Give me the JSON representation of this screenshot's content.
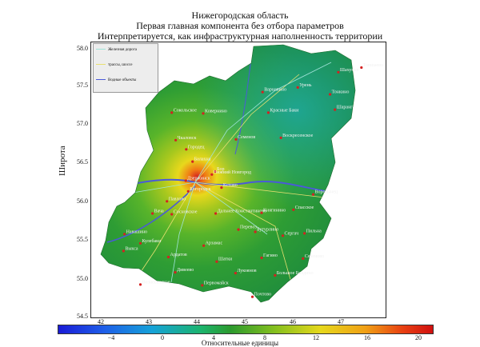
{
  "titles": {
    "line1": "Нижегородская область",
    "line2": "Первая главная компонента без отбора параметров",
    "line3": "Интерпретируется, как инфраструктурная наполненность территории"
  },
  "axes": {
    "ylabel": "Широта",
    "yticks": [
      "58.0",
      "57.5",
      "57.0",
      "56.5",
      "56.0",
      "55.5",
      "55.0",
      "54.5"
    ],
    "xticks": [
      "42",
      "43",
      "44",
      "45",
      "46",
      "47"
    ]
  },
  "legend": {
    "items": [
      {
        "label": "Железная дорога",
        "color": "#9fe3d8"
      },
      {
        "label": "трассы, шоссе",
        "color": "#e8e070"
      },
      {
        "label": "Водные объекты",
        "color": "#4a5ad8"
      }
    ]
  },
  "colorbar": {
    "label": "Относительные единицы",
    "ticks": [
      "−4",
      "0",
      "4",
      "8",
      "12",
      "16",
      "20"
    ]
  },
  "cities": [
    {
      "name": "Тоншаево",
      "lon": 47.1,
      "lat": 57.72
    },
    {
      "name": "Шахунья",
      "lon": 46.62,
      "lat": 57.66
    },
    {
      "name": "Урень",
      "lon": 45.78,
      "lat": 57.46
    },
    {
      "name": "Варнавино",
      "lon": 45.05,
      "lat": 57.4
    },
    {
      "name": "Тонкино",
      "lon": 46.45,
      "lat": 57.37
    },
    {
      "name": "Шарангa",
      "lon": 46.55,
      "lat": 57.17
    },
    {
      "name": "Красные Баки",
      "lon": 45.17,
      "lat": 57.13
    },
    {
      "name": "Сокольское",
      "lon": 43.17,
      "lat": 57.13
    },
    {
      "name": "Ковернино",
      "lon": 43.82,
      "lat": 57.12
    },
    {
      "name": "Воскресенское",
      "lon": 45.43,
      "lat": 56.8
    },
    {
      "name": "Семенов",
      "lon": 44.5,
      "lat": 56.78
    },
    {
      "name": "Бор",
      "lon": 44.07,
      "lat": 56.36
    },
    {
      "name": "Нижний Новгород",
      "lon": 44.0,
      "lat": 56.32
    },
    {
      "name": "Кстово",
      "lon": 44.2,
      "lat": 56.15
    },
    {
      "name": "Богородск",
      "lon": 43.51,
      "lat": 56.1
    },
    {
      "name": "Дзержинск",
      "lon": 43.46,
      "lat": 56.24
    },
    {
      "name": "Воротынец",
      "lon": 46.1,
      "lat": 56.06
    },
    {
      "name": "Павлово",
      "lon": 43.07,
      "lat": 55.97
    },
    {
      "name": "Спасское",
      "lon": 45.69,
      "lat": 55.86
    },
    {
      "name": "Вача",
      "lon": 42.77,
      "lat": 55.81
    },
    {
      "name": "Сосновское",
      "lon": 43.17,
      "lat": 55.8
    },
    {
      "name": "Дальнее Константиново",
      "lon": 44.08,
      "lat": 55.81
    },
    {
      "name": "Княгинино",
      "lon": 45.03,
      "lat": 55.82
    },
    {
      "name": "Сергач",
      "lon": 45.47,
      "lat": 55.52
    },
    {
      "name": "Перевоз",
      "lon": 44.55,
      "lat": 55.6
    },
    {
      "name": "Бутурлино",
      "lon": 44.9,
      "lat": 55.57
    },
    {
      "name": "Арзамас",
      "lon": 43.83,
      "lat": 55.39
    },
    {
      "name": "Гагино",
      "lon": 45.03,
      "lat": 55.23
    },
    {
      "name": "Сеченово",
      "lon": 45.89,
      "lat": 55.22
    },
    {
      "name": "Шатки",
      "lon": 44.1,
      "lat": 55.18
    },
    {
      "name": "Ардатов",
      "lon": 43.1,
      "lat": 55.24
    },
    {
      "name": "Пильна",
      "lon": 45.92,
      "lat": 55.55
    },
    {
      "name": "Лукоянов",
      "lon": 44.49,
      "lat": 55.03
    },
    {
      "name": "Дивеево",
      "lon": 43.24,
      "lat": 55.04
    },
    {
      "name": "Большое Болдино",
      "lon": 45.31,
      "lat": 55.0
    },
    {
      "name": "Вознесенское",
      "lon": 42.52,
      "lat": 54.88
    },
    {
      "name": "Первомайск",
      "lon": 43.8,
      "lat": 54.87
    },
    {
      "name": "Почтово",
      "lon": 44.84,
      "lat": 54.72
    },
    {
      "name": "Выкса",
      "lon": 42.17,
      "lat": 55.32
    },
    {
      "name": "Кулебаки",
      "lon": 42.52,
      "lat": 55.42
    },
    {
      "name": "Навашино",
      "lon": 42.19,
      "lat": 55.54
    },
    {
      "name": "Городец",
      "lon": 43.47,
      "lat": 56.65
    },
    {
      "name": "Чкаловск",
      "lon": 43.25,
      "lat": 56.77
    },
    {
      "name": "Балахна",
      "lon": 43.6,
      "lat": 56.49
    }
  ]
}
